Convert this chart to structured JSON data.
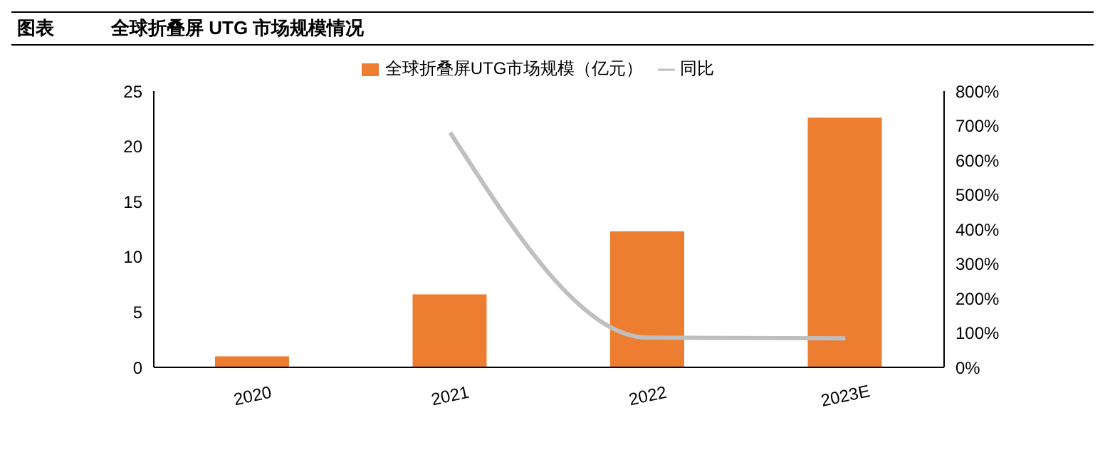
{
  "chart_data": {
    "type": "bar",
    "title": "图表",
    "subtitle": "全球折叠屏 UTG 市场规模情况",
    "categories": [
      "2020",
      "2021",
      "2022",
      "2023E"
    ],
    "series": [
      {
        "name": "全球折叠屏UTG市场规模（亿元）",
        "color": "#ed7d31",
        "values": [
          1.0,
          6.6,
          12.3,
          22.6
        ]
      },
      {
        "name": "同比",
        "type": "line",
        "axis": "y2",
        "color": "#bfbfbf",
        "values": [
          null,
          680,
          86,
          84
        ]
      }
    ],
    "ylim": [
      0,
      25
    ],
    "yticks": [
      0,
      5,
      10,
      15,
      20,
      25
    ],
    "y2lim": [
      0,
      800
    ],
    "y2ticks": [
      {
        "value": 0,
        "label": "0%"
      },
      {
        "value": 100,
        "label": "100%"
      },
      {
        "value": 200,
        "label": "200%"
      },
      {
        "value": 300,
        "label": "300%"
      },
      {
        "value": 400,
        "label": "400%"
      },
      {
        "value": 500,
        "label": "500%"
      },
      {
        "value": 600,
        "label": "600%"
      },
      {
        "value": 700,
        "label": "700%"
      },
      {
        "value": 800,
        "label": "800%"
      }
    ],
    "legend": "top",
    "grid": false,
    "marker": "none",
    "line_style": "solid"
  }
}
